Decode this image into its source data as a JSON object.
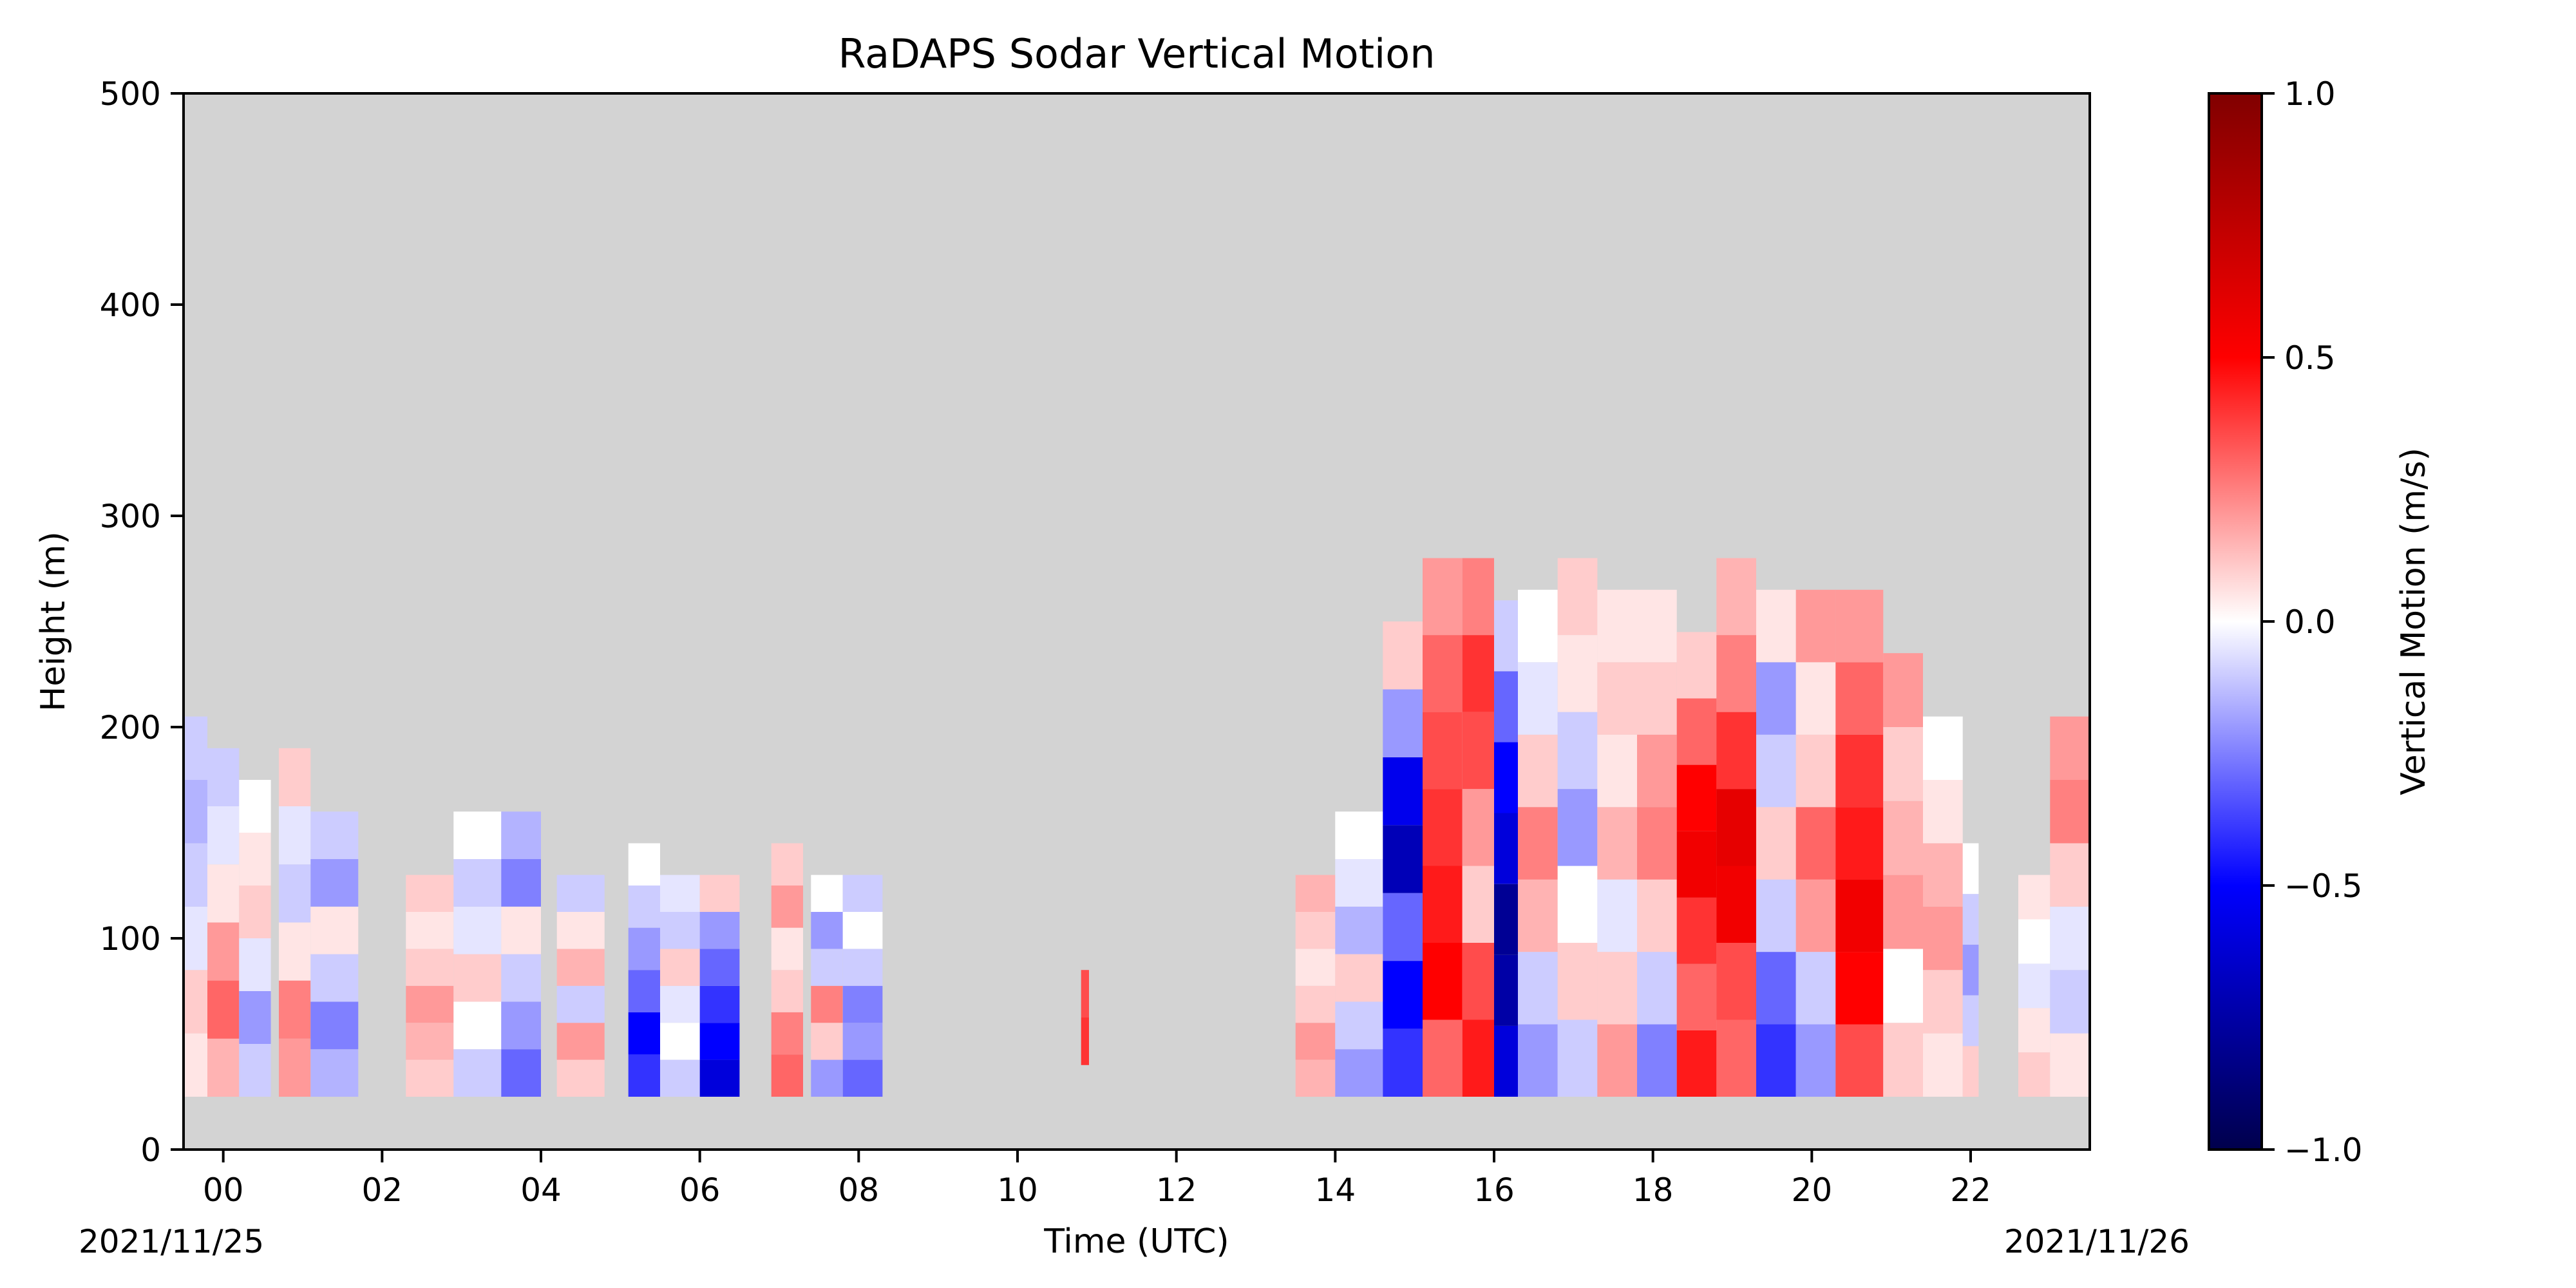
{
  "chart_data": {
    "type": "heatmap",
    "title": "RaDAPS Sodar Vertical Motion",
    "xlabel": "Time (UTC)",
    "ylabel": "Height (m)",
    "date_start": "2021/11/25",
    "date_end": "2021/11/26",
    "xlim": [
      -0.5,
      23.5
    ],
    "ylim": [
      0,
      500
    ],
    "xticks": [
      0,
      2,
      4,
      6,
      8,
      10,
      12,
      14,
      16,
      18,
      20,
      22
    ],
    "xtick_labels": [
      "00",
      "02",
      "04",
      "06",
      "08",
      "10",
      "12",
      "14",
      "16",
      "18",
      "20",
      "22"
    ],
    "yticks": [
      0,
      100,
      200,
      300,
      400,
      500
    ],
    "ytick_labels": [
      "0",
      "100",
      "200",
      "300",
      "400",
      "500"
    ],
    "missing_color": "#d3d3d3",
    "colorbar": {
      "label": "Vertical Motion (m/s)",
      "range": [
        -1.0,
        1.0
      ],
      "ticks": [
        -1.0,
        -0.5,
        0.0,
        0.5,
        1.0
      ],
      "tick_labels": [
        "−1.0",
        "−0.5",
        "0.0",
        "0.5",
        "1.0"
      ],
      "colormap": "seismic",
      "stops": [
        "#00004c",
        "#0000ff",
        "#ffffff",
        "#ff0000",
        "#800000"
      ]
    },
    "columns": [
      {
        "t0": -0.5,
        "t1": -0.2,
        "z0": 25,
        "z1": 205,
        "w": [
          0.05,
          0.1,
          -0.05,
          -0.1,
          -0.15,
          -0.1
        ]
      },
      {
        "t0": -0.2,
        "t1": 0.2,
        "z0": 25,
        "z1": 190,
        "w": [
          0.15,
          0.3,
          0.2,
          0.05,
          -0.05,
          -0.1
        ]
      },
      {
        "t0": 0.2,
        "t1": 0.6,
        "z0": 25,
        "z1": 175,
        "w": [
          -0.1,
          -0.2,
          -0.05,
          0.1,
          0.05,
          0.0
        ]
      },
      {
        "t0": 0.7,
        "t1": 1.1,
        "z0": 25,
        "z1": 190,
        "w": [
          0.2,
          0.25,
          0.05,
          -0.1,
          -0.05,
          0.1
        ]
      },
      {
        "t0": 1.1,
        "t1": 1.7,
        "z0": 25,
        "z1": 160,
        "w": [
          -0.15,
          -0.25,
          -0.1,
          0.05,
          -0.2,
          -0.1
        ]
      },
      {
        "t0": 2.3,
        "t1": 2.9,
        "z0": 25,
        "z1": 130,
        "w": [
          0.1,
          0.15,
          0.2,
          0.1,
          0.05,
          0.1
        ]
      },
      {
        "t0": 2.9,
        "t1": 3.5,
        "z0": 25,
        "z1": 160,
        "w": [
          -0.1,
          0.0,
          0.1,
          -0.05,
          -0.1,
          0.0
        ]
      },
      {
        "t0": 3.5,
        "t1": 4.0,
        "z0": 25,
        "z1": 160,
        "w": [
          -0.3,
          -0.2,
          -0.1,
          0.05,
          -0.25,
          -0.15
        ]
      },
      {
        "t0": 4.2,
        "t1": 4.8,
        "z0": 25,
        "z1": 130,
        "w": [
          0.1,
          0.2,
          -0.1,
          0.15,
          0.05,
          -0.1
        ]
      },
      {
        "t0": 5.1,
        "t1": 5.5,
        "z0": 25,
        "z1": 145,
        "w": [
          -0.4,
          -0.5,
          -0.3,
          -0.2,
          -0.1,
          0.0
        ]
      },
      {
        "t0": 5.5,
        "t1": 6.0,
        "z0": 25,
        "z1": 130,
        "w": [
          -0.1,
          0.0,
          -0.05,
          0.1,
          -0.1,
          -0.05
        ]
      },
      {
        "t0": 6.0,
        "t1": 6.5,
        "z0": 25,
        "z1": 130,
        "w": [
          -0.6,
          -0.5,
          -0.4,
          -0.3,
          -0.2,
          0.1
        ]
      },
      {
        "t0": 6.9,
        "t1": 7.3,
        "z0": 25,
        "z1": 145,
        "w": [
          0.3,
          0.25,
          0.1,
          0.05,
          0.2,
          0.1
        ]
      },
      {
        "t0": 7.4,
        "t1": 7.8,
        "z0": 25,
        "z1": 130,
        "w": [
          -0.2,
          0.1,
          0.25,
          -0.1,
          -0.2,
          0.0
        ]
      },
      {
        "t0": 7.8,
        "t1": 8.3,
        "z0": 25,
        "z1": 130,
        "w": [
          -0.3,
          -0.2,
          -0.25,
          -0.1,
          0.0,
          -0.1
        ]
      },
      {
        "t0": 10.8,
        "t1": 10.9,
        "z0": 40,
        "z1": 85,
        "w": [
          0.4,
          0.35
        ]
      },
      {
        "t0": 13.5,
        "t1": 14.0,
        "z0": 25,
        "z1": 130,
        "w": [
          0.15,
          0.2,
          0.1,
          0.05,
          0.1,
          0.15
        ]
      },
      {
        "t0": 14.0,
        "t1": 14.6,
        "z0": 25,
        "z1": 160,
        "w": [
          -0.2,
          -0.1,
          0.1,
          -0.15,
          -0.05,
          0.0
        ]
      },
      {
        "t0": 14.6,
        "t1": 15.1,
        "z0": 25,
        "z1": 250,
        "w": [
          -0.4,
          -0.5,
          -0.3,
          -0.7,
          -0.55,
          -0.2,
          0.1
        ]
      },
      {
        "t0": 15.1,
        "t1": 15.6,
        "z0": 25,
        "z1": 280,
        "w": [
          0.3,
          0.5,
          0.45,
          0.4,
          0.35,
          0.3,
          0.2
        ]
      },
      {
        "t0": 15.6,
        "t1": 16.0,
        "z0": 25,
        "z1": 280,
        "w": [
          0.45,
          0.35,
          0.1,
          0.2,
          0.35,
          0.4,
          0.25
        ]
      },
      {
        "t0": 16.0,
        "t1": 16.3,
        "z0": 25,
        "z1": 260,
        "w": [
          -0.6,
          -0.75,
          -0.8,
          -0.6,
          -0.5,
          -0.3,
          -0.1
        ]
      },
      {
        "t0": 16.3,
        "t1": 16.8,
        "z0": 25,
        "z1": 265,
        "w": [
          -0.2,
          -0.1,
          0.15,
          0.25,
          0.1,
          -0.05,
          0.0
        ]
      },
      {
        "t0": 16.8,
        "t1": 17.3,
        "z0": 25,
        "z1": 280,
        "w": [
          -0.1,
          0.1,
          0.0,
          -0.2,
          -0.1,
          0.05,
          0.1
        ]
      },
      {
        "t0": 17.3,
        "t1": 17.8,
        "z0": 25,
        "z1": 265,
        "w": [
          0.2,
          0.1,
          -0.05,
          0.15,
          0.05,
          0.1,
          0.05
        ]
      },
      {
        "t0": 17.8,
        "t1": 18.3,
        "z0": 25,
        "z1": 265,
        "w": [
          -0.25,
          -0.1,
          0.1,
          0.25,
          0.2,
          0.1,
          0.05
        ]
      },
      {
        "t0": 18.3,
        "t1": 18.8,
        "z0": 25,
        "z1": 245,
        "w": [
          0.45,
          0.3,
          0.4,
          0.55,
          0.5,
          0.3,
          0.1
        ]
      },
      {
        "t0": 18.8,
        "t1": 19.3,
        "z0": 25,
        "z1": 280,
        "w": [
          0.3,
          0.35,
          0.55,
          0.6,
          0.4,
          0.25,
          0.15
        ]
      },
      {
        "t0": 19.3,
        "t1": 19.8,
        "z0": 25,
        "z1": 265,
        "w": [
          -0.4,
          -0.3,
          -0.1,
          0.1,
          -0.1,
          -0.2,
          0.05
        ]
      },
      {
        "t0": 19.8,
        "t1": 20.3,
        "z0": 25,
        "z1": 265,
        "w": [
          -0.2,
          -0.1,
          0.2,
          0.3,
          0.1,
          0.05,
          0.2
        ]
      },
      {
        "t0": 20.3,
        "t1": 20.9,
        "z0": 25,
        "z1": 265,
        "w": [
          0.35,
          0.5,
          0.55,
          0.45,
          0.4,
          0.3,
          0.2
        ]
      },
      {
        "t0": 20.9,
        "t1": 21.4,
        "z0": 25,
        "z1": 235,
        "w": [
          0.1,
          0.0,
          0.2,
          0.15,
          0.1,
          0.2
        ]
      },
      {
        "t0": 21.4,
        "t1": 21.9,
        "z0": 25,
        "z1": 205,
        "w": [
          0.05,
          0.1,
          0.2,
          0.15,
          0.05,
          0.0
        ]
      },
      {
        "t0": 21.9,
        "t1": 22.1,
        "z0": 25,
        "z1": 145,
        "w": [
          0.1,
          -0.1,
          -0.2,
          -0.1,
          0.0
        ]
      },
      {
        "t0": 22.6,
        "t1": 23.0,
        "z0": 25,
        "z1": 130,
        "w": [
          0.1,
          0.05,
          -0.05,
          0.0,
          0.05
        ]
      },
      {
        "t0": 23.0,
        "t1": 23.5,
        "z0": 25,
        "z1": 205,
        "w": [
          0.05,
          -0.1,
          -0.05,
          0.1,
          0.25,
          0.2
        ]
      }
    ]
  }
}
